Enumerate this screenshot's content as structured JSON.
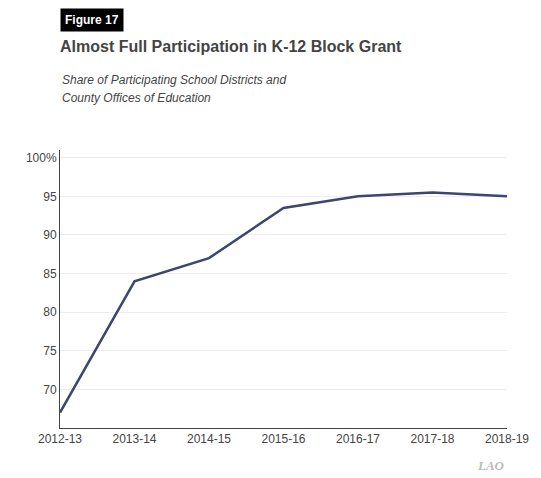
{
  "chart_data": {
    "type": "line",
    "title": "Almost Full Participation in K-12 Block Grant",
    "subtitle": [
      "Share of Participating School Districts and",
      "County Offices of Education"
    ],
    "annotations": [
      "Figure 17",
      "LAO"
    ],
    "categories": [
      "2012-13",
      "2013-14",
      "2014-15",
      "2015-16",
      "2016-17",
      "2017-18",
      "2018-19"
    ],
    "values": [
      67,
      84,
      87,
      93.5,
      95,
      95.5,
      95
    ],
    "color": "#3d4570",
    "ylim": [
      65,
      101
    ],
    "yticks": [
      70,
      75,
      80,
      85,
      90,
      95,
      {
        "value": 100,
        "label": "100%"
      }
    ],
    "grid": true
  }
}
